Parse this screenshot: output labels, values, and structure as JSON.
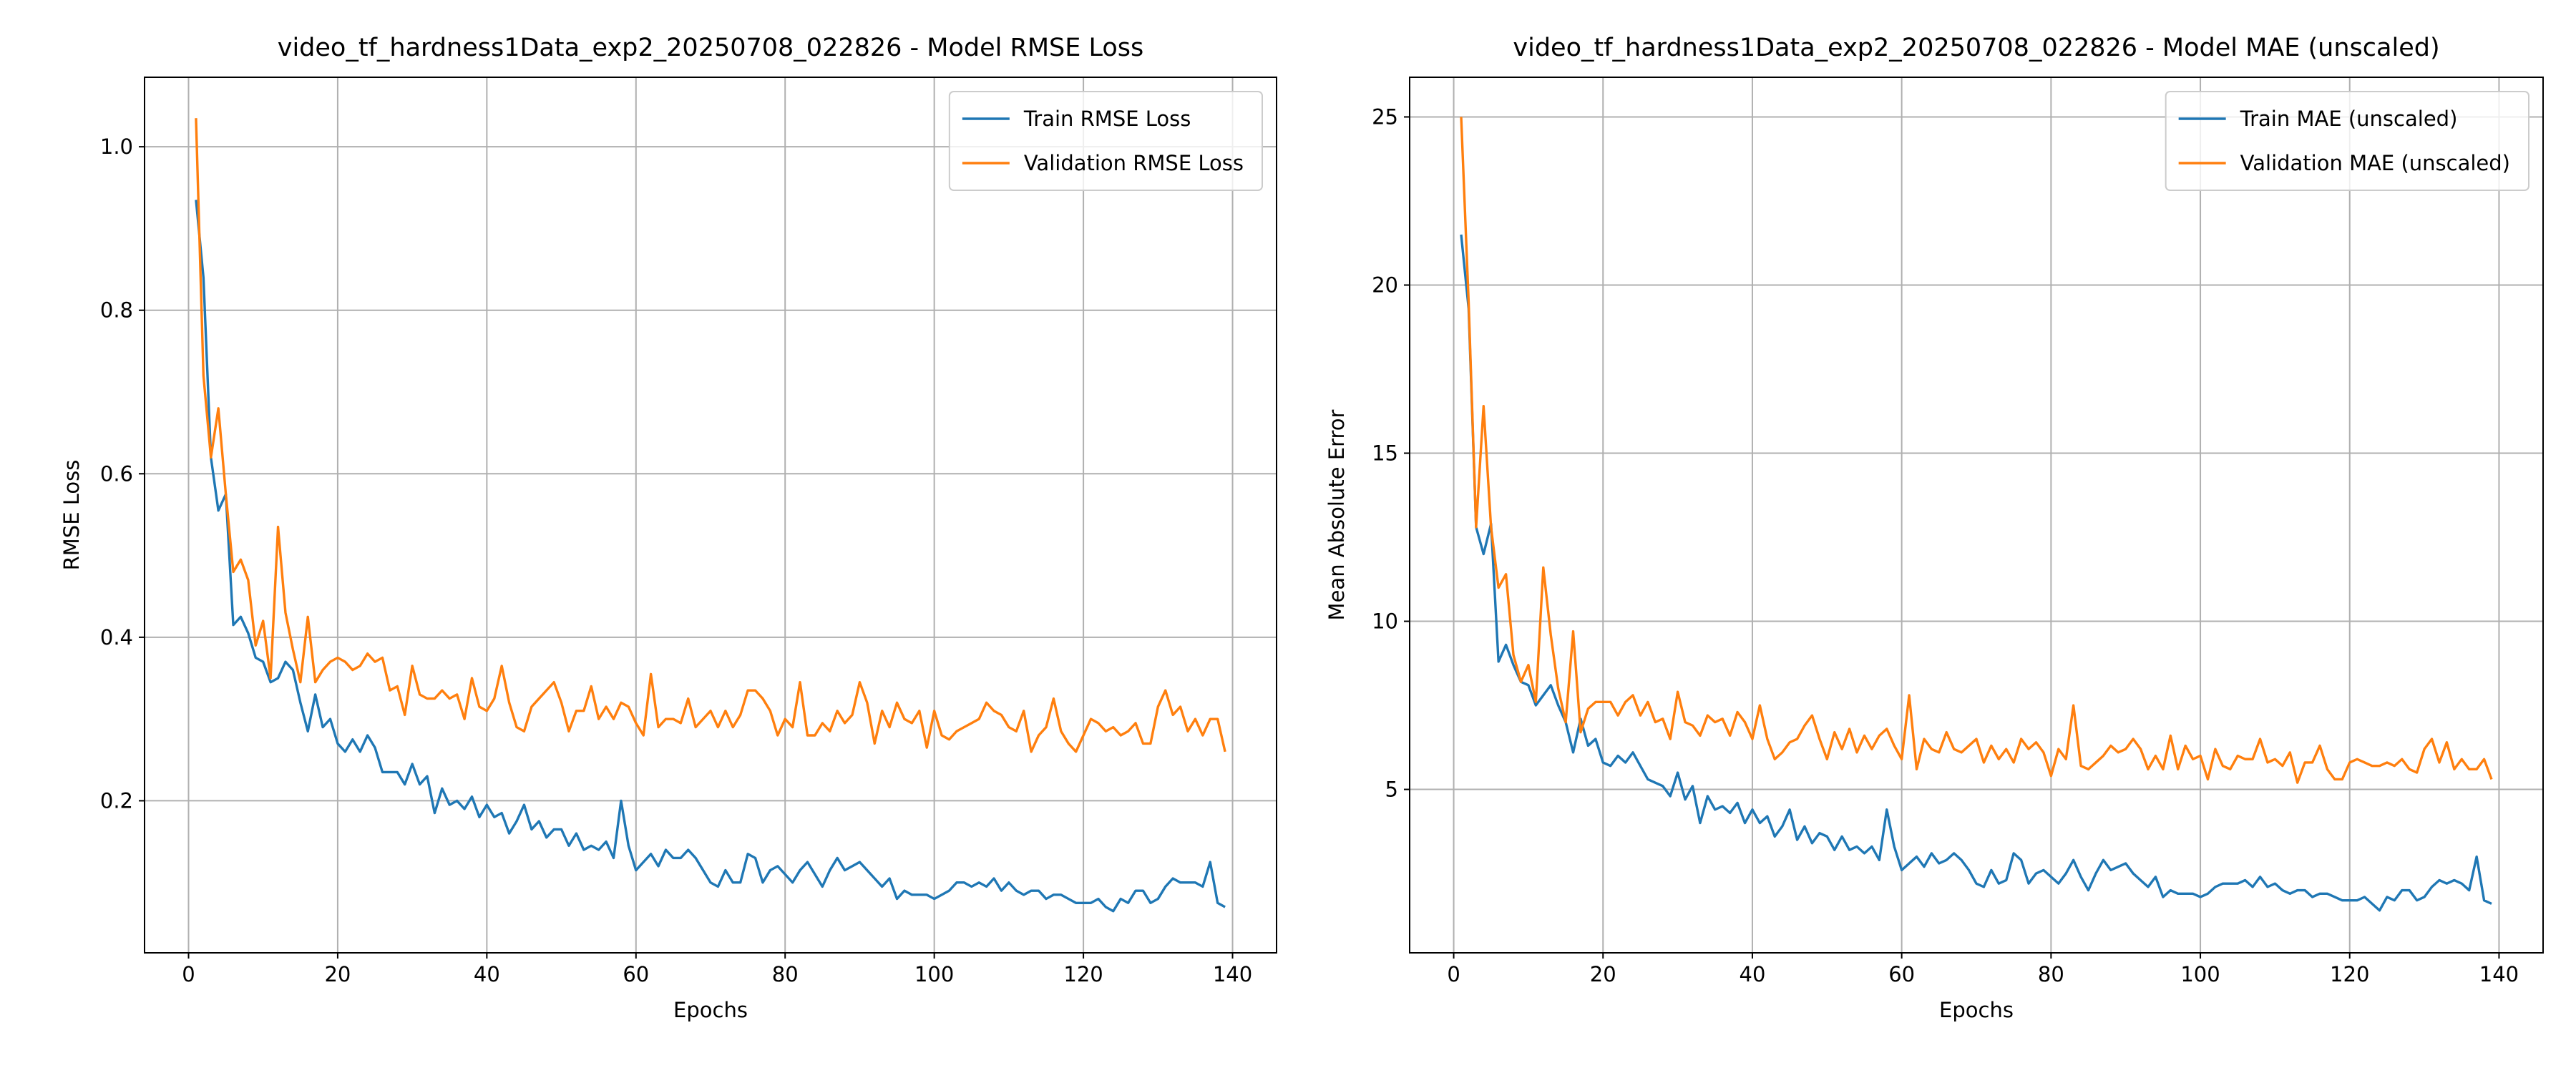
{
  "chart_data": [
    {
      "type": "line",
      "title": "video_tf_hardness1Data_exp2_20250708_022826 - Model RMSE Loss",
      "xlabel": "Epochs",
      "ylabel": "RMSE Loss",
      "x": [
        1,
        2,
        3,
        4,
        5,
        6,
        7,
        8,
        9,
        10,
        11,
        12,
        13,
        14,
        15,
        16,
        17,
        18,
        19,
        20,
        21,
        22,
        23,
        24,
        25,
        26,
        27,
        28,
        29,
        30,
        31,
        32,
        33,
        34,
        35,
        36,
        37,
        38,
        39,
        40,
        41,
        42,
        43,
        44,
        45,
        46,
        47,
        48,
        49,
        50,
        51,
        52,
        53,
        54,
        55,
        56,
        57,
        58,
        59,
        60,
        61,
        62,
        63,
        64,
        65,
        66,
        67,
        68,
        69,
        70,
        71,
        72,
        73,
        74,
        75,
        76,
        77,
        78,
        79,
        80,
        81,
        82,
        83,
        84,
        85,
        86,
        87,
        88,
        89,
        90,
        91,
        92,
        93,
        94,
        95,
        96,
        97,
        98,
        99,
        100,
        101,
        102,
        103,
        104,
        105,
        106,
        107,
        108,
        109,
        110,
        111,
        112,
        113,
        114,
        115,
        116,
        117,
        118,
        119,
        120,
        121,
        122,
        123,
        124,
        125,
        126,
        127,
        128,
        129,
        130,
        131,
        132,
        133,
        134,
        135,
        136,
        137,
        138,
        139
      ],
      "series": [
        {
          "name": "Train RMSE Loss",
          "color": "#1f77b4",
          "values": [
            0.935,
            0.84,
            0.62,
            0.555,
            0.575,
            0.415,
            0.425,
            0.405,
            0.375,
            0.37,
            0.345,
            0.35,
            0.37,
            0.36,
            0.32,
            0.285,
            0.33,
            0.29,
            0.3,
            0.27,
            0.26,
            0.275,
            0.26,
            0.28,
            0.265,
            0.235,
            0.235,
            0.235,
            0.22,
            0.245,
            0.22,
            0.23,
            0.185,
            0.215,
            0.195,
            0.2,
            0.19,
            0.205,
            0.18,
            0.195,
            0.18,
            0.185,
            0.16,
            0.175,
            0.195,
            0.165,
            0.175,
            0.155,
            0.165,
            0.165,
            0.145,
            0.16,
            0.14,
            0.145,
            0.14,
            0.15,
            0.13,
            0.2,
            0.145,
            0.115,
            0.125,
            0.135,
            0.12,
            0.14,
            0.13,
            0.13,
            0.14,
            0.13,
            0.115,
            0.1,
            0.095,
            0.115,
            0.1,
            0.1,
            0.135,
            0.13,
            0.1,
            0.115,
            0.12,
            0.11,
            0.1,
            0.115,
            0.125,
            0.11,
            0.095,
            0.115,
            0.13,
            0.115,
            0.12,
            0.125,
            0.115,
            0.105,
            0.095,
            0.105,
            0.08,
            0.09,
            0.085,
            0.085,
            0.085,
            0.08,
            0.085,
            0.09,
            0.1,
            0.1,
            0.095,
            0.1,
            0.095,
            0.105,
            0.09,
            0.1,
            0.09,
            0.085,
            0.09,
            0.09,
            0.08,
            0.085,
            0.085,
            0.08,
            0.075,
            0.075,
            0.075,
            0.08,
            0.07,
            0.065,
            0.08,
            0.075,
            0.09,
            0.09,
            0.075,
            0.08,
            0.095,
            0.105,
            0.1,
            0.1,
            0.1,
            0.095,
            0.125,
            0.075,
            0.07
          ]
        },
        {
          "name": "Validation RMSE Loss",
          "color": "#ff7f0e",
          "values": [
            1.035,
            0.72,
            0.62,
            0.68,
            0.575,
            0.48,
            0.495,
            0.47,
            0.39,
            0.42,
            0.35,
            0.535,
            0.43,
            0.385,
            0.345,
            0.425,
            0.345,
            0.36,
            0.37,
            0.375,
            0.37,
            0.36,
            0.365,
            0.38,
            0.37,
            0.375,
            0.335,
            0.34,
            0.305,
            0.365,
            0.33,
            0.325,
            0.325,
            0.335,
            0.325,
            0.33,
            0.3,
            0.35,
            0.315,
            0.31,
            0.325,
            0.365,
            0.32,
            0.29,
            0.285,
            0.315,
            0.325,
            0.335,
            0.345,
            0.32,
            0.285,
            0.31,
            0.31,
            0.34,
            0.3,
            0.315,
            0.3,
            0.32,
            0.315,
            0.295,
            0.28,
            0.355,
            0.29,
            0.3,
            0.3,
            0.295,
            0.325,
            0.29,
            0.3,
            0.31,
            0.29,
            0.31,
            0.29,
            0.305,
            0.335,
            0.335,
            0.325,
            0.31,
            0.28,
            0.3,
            0.29,
            0.345,
            0.28,
            0.28,
            0.295,
            0.285,
            0.31,
            0.295,
            0.305,
            0.345,
            0.32,
            0.27,
            0.31,
            0.29,
            0.32,
            0.3,
            0.295,
            0.31,
            0.265,
            0.31,
            0.28,
            0.275,
            0.285,
            0.29,
            0.295,
            0.3,
            0.32,
            0.31,
            0.305,
            0.29,
            0.285,
            0.31,
            0.26,
            0.28,
            0.29,
            0.325,
            0.285,
            0.27,
            0.26,
            0.28,
            0.3,
            0.295,
            0.285,
            0.29,
            0.28,
            0.285,
            0.295,
            0.27,
            0.27,
            0.315,
            0.335,
            0.305,
            0.315,
            0.285,
            0.3,
            0.28,
            0.3,
            0.3,
            0.26
          ]
        }
      ],
      "xlim": [
        -5.9,
        145.9
      ],
      "xticks": [
        0,
        20,
        40,
        60,
        80,
        100,
        120,
        140
      ],
      "ylim": [
        0.014,
        1.085
      ],
      "yticks": [
        0.2,
        0.4,
        0.6,
        0.8,
        {
          "value": 1,
          "label": "1.0"
        }
      ],
      "grid": true,
      "legend": "upper right"
    },
    {
      "type": "line",
      "title": "video_tf_hardness1Data_exp2_20250708_022826 - Model MAE (unscaled)",
      "xlabel": "Epochs",
      "ylabel": "Mean Absolute Error",
      "x": [
        1,
        2,
        3,
        4,
        5,
        6,
        7,
        8,
        9,
        10,
        11,
        12,
        13,
        14,
        15,
        16,
        17,
        18,
        19,
        20,
        21,
        22,
        23,
        24,
        25,
        26,
        27,
        28,
        29,
        30,
        31,
        32,
        33,
        34,
        35,
        36,
        37,
        38,
        39,
        40,
        41,
        42,
        43,
        44,
        45,
        46,
        47,
        48,
        49,
        50,
        51,
        52,
        53,
        54,
        55,
        56,
        57,
        58,
        59,
        60,
        61,
        62,
        63,
        64,
        65,
        66,
        67,
        68,
        69,
        70,
        71,
        72,
        73,
        74,
        75,
        76,
        77,
        78,
        79,
        80,
        81,
        82,
        83,
        84,
        85,
        86,
        87,
        88,
        89,
        90,
        91,
        92,
        93,
        94,
        95,
        96,
        97,
        98,
        99,
        100,
        101,
        102,
        103,
        104,
        105,
        106,
        107,
        108,
        109,
        110,
        111,
        112,
        113,
        114,
        115,
        116,
        117,
        118,
        119,
        120,
        121,
        122,
        123,
        124,
        125,
        126,
        127,
        128,
        129,
        130,
        131,
        132,
        133,
        134,
        135,
        136,
        137,
        138,
        139
      ],
      "series": [
        {
          "name": "Train MAE (unscaled)",
          "color": "#1f77b4",
          "values": [
            21.5,
            19.3,
            12.8,
            12.0,
            12.9,
            8.8,
            9.3,
            8.7,
            8.2,
            8.1,
            7.5,
            7.8,
            8.1,
            7.5,
            7.0,
            6.1,
            7.1,
            6.3,
            6.5,
            5.8,
            5.7,
            6.0,
            5.8,
            6.1,
            5.7,
            5.3,
            5.2,
            5.1,
            4.8,
            5.5,
            4.7,
            5.1,
            4.0,
            4.8,
            4.4,
            4.5,
            4.3,
            4.6,
            4.0,
            4.4,
            4.0,
            4.2,
            3.6,
            3.9,
            4.4,
            3.5,
            3.9,
            3.4,
            3.7,
            3.6,
            3.2,
            3.6,
            3.2,
            3.3,
            3.1,
            3.3,
            2.9,
            4.4,
            3.3,
            2.6,
            2.8,
            3.0,
            2.7,
            3.1,
            2.8,
            2.9,
            3.1,
            2.9,
            2.6,
            2.2,
            2.1,
            2.6,
            2.2,
            2.3,
            3.1,
            2.9,
            2.2,
            2.5,
            2.6,
            2.4,
            2.2,
            2.5,
            2.9,
            2.4,
            2.0,
            2.5,
            2.9,
            2.6,
            2.7,
            2.8,
            2.5,
            2.3,
            2.1,
            2.4,
            1.8,
            2.0,
            1.9,
            1.9,
            1.9,
            1.8,
            1.9,
            2.1,
            2.2,
            2.2,
            2.2,
            2.3,
            2.1,
            2.4,
            2.1,
            2.2,
            2.0,
            1.9,
            2.0,
            2.0,
            1.8,
            1.9,
            1.9,
            1.8,
            1.7,
            1.7,
            1.7,
            1.8,
            1.6,
            1.4,
            1.8,
            1.7,
            2.0,
            2.0,
            1.7,
            1.8,
            2.1,
            2.3,
            2.2,
            2.3,
            2.2,
            2.0,
            3.0,
            1.7,
            1.6
          ]
        },
        {
          "name": "Validation MAE (unscaled)",
          "color": "#ff7f0e",
          "values": [
            25.0,
            19.5,
            12.8,
            16.4,
            12.8,
            11.0,
            11.4,
            9.0,
            8.2,
            8.7,
            7.6,
            11.6,
            9.6,
            8.0,
            7.0,
            9.7,
            6.7,
            7.4,
            7.6,
            7.6,
            7.6,
            7.2,
            7.6,
            7.8,
            7.2,
            7.6,
            7.0,
            7.1,
            6.5,
            7.9,
            7.0,
            6.9,
            6.6,
            7.2,
            7.0,
            7.1,
            6.6,
            7.3,
            7.0,
            6.5,
            7.5,
            6.5,
            5.9,
            6.1,
            6.4,
            6.5,
            6.9,
            7.2,
            6.5,
            5.9,
            6.7,
            6.2,
            6.8,
            6.1,
            6.6,
            6.2,
            6.6,
            6.8,
            6.3,
            5.9,
            7.8,
            5.6,
            6.5,
            6.2,
            6.1,
            6.7,
            6.2,
            6.1,
            6.3,
            6.5,
            5.8,
            6.3,
            5.9,
            6.2,
            5.8,
            6.5,
            6.2,
            6.4,
            6.1,
            5.4,
            6.2,
            5.9,
            7.5,
            5.7,
            5.6,
            5.8,
            6.0,
            6.3,
            6.1,
            6.2,
            6.5,
            6.2,
            5.6,
            6.0,
            5.6,
            6.6,
            5.6,
            6.3,
            5.9,
            6.0,
            5.3,
            6.2,
            5.7,
            5.6,
            6.0,
            5.9,
            5.9,
            6.5,
            5.8,
            5.9,
            5.7,
            6.1,
            5.2,
            5.8,
            5.8,
            6.3,
            5.6,
            5.3,
            5.3,
            5.8,
            5.9,
            5.8,
            5.7,
            5.7,
            5.8,
            5.7,
            5.9,
            5.6,
            5.5,
            6.2,
            6.5,
            5.8,
            6.4,
            5.6,
            5.9,
            5.6,
            5.6,
            5.9,
            5.3
          ]
        }
      ],
      "xlim": [
        -5.9,
        145.9
      ],
      "xticks": [
        0,
        20,
        40,
        60,
        80,
        100,
        120,
        140
      ],
      "ylim": [
        0.14,
        26.18
      ],
      "yticks": [
        5,
        10,
        15,
        20,
        25
      ],
      "grid": true,
      "legend": "upper right"
    }
  ]
}
